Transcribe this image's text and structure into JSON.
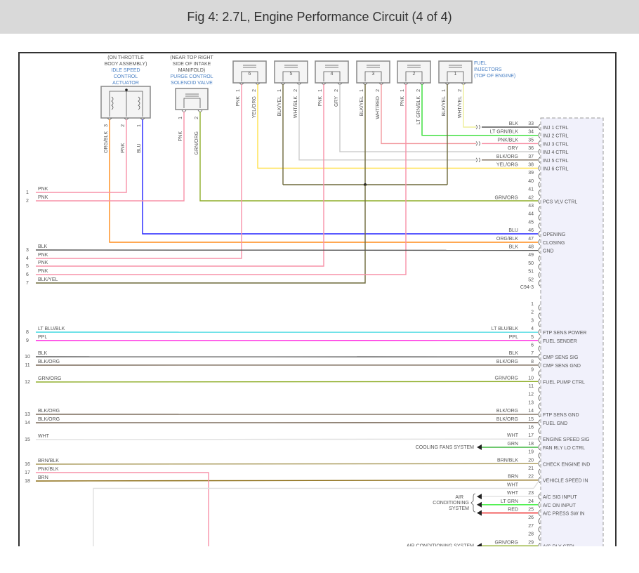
{
  "title": "Fig 4: 2.7L, Engine Performance Circuit (4 of 4)",
  "components": {
    "iac": {
      "location": [
        "(ON THROTTLE",
        "BODY ASSEMBLY)"
      ],
      "name": [
        "IDLE SPEED",
        "CONTROL",
        "ACTUATOR"
      ],
      "pins": [
        {
          "pin": "3",
          "wire": "ORG/BLK"
        },
        {
          "pin": "2",
          "wire": "PNK"
        },
        {
          "pin": "1",
          "wire": "BLU"
        }
      ]
    },
    "purge": {
      "location": [
        "(NEAR TOP RIGHT",
        "SIDE OF INTAKE",
        "MANIFOLD)"
      ],
      "name": [
        "PURGE CONTROL",
        "SOLENOID VALVE"
      ],
      "pins": [
        {
          "pin": "1",
          "wire": "PNK"
        },
        {
          "pin": "2",
          "wire": "GRN/ORG"
        }
      ]
    },
    "injectors": {
      "name": [
        "FUEL",
        "INJECTORS",
        "(TOP OF ENGINE)"
      ],
      "items": [
        {
          "num": "1",
          "pin1": "BLK/YEL",
          "pin2": "WHT/YEL"
        },
        {
          "num": "2",
          "pin1": "PNK",
          "pin2": "LT GRN/BLK"
        },
        {
          "num": "3",
          "pin1": "BLK/YEL",
          "pin2": "WHT/RED"
        },
        {
          "num": "4",
          "pin1": "PNK",
          "pin2": "GRY"
        },
        {
          "num": "5",
          "pin1": "BLK/YEL",
          "pin2": "WHT/BLK"
        },
        {
          "num": "6",
          "pin1": "PNK",
          "pin2": "YEL/ORG"
        }
      ]
    }
  },
  "pcm_connector_a": {
    "name": "C94-3",
    "pins": [
      {
        "pin": "33",
        "wire": "BLK",
        "func": "INJ 1 CTRL"
      },
      {
        "pin": "34",
        "wire": "LT GRN/BLK",
        "func": "INJ 2 CTRL"
      },
      {
        "pin": "35",
        "wire": "PNK/BLK",
        "func": "INJ 3 CTRL"
      },
      {
        "pin": "36",
        "wire": "GRY",
        "func": "INJ 4 CTRL"
      },
      {
        "pin": "37",
        "wire": "BLK/ORG",
        "func": "INJ 5 CTRL"
      },
      {
        "pin": "38",
        "wire": "YEL/ORG",
        "func": "INJ 6 CTRL"
      },
      {
        "pin": "39"
      },
      {
        "pin": "40"
      },
      {
        "pin": "41"
      },
      {
        "pin": "42",
        "wire": "GRN/ORG",
        "func": "PCS VLV CTRL"
      },
      {
        "pin": "43"
      },
      {
        "pin": "44"
      },
      {
        "pin": "45"
      },
      {
        "pin": "46",
        "wire": "BLU",
        "func": "OPENING"
      },
      {
        "pin": "47",
        "wire": "ORG/BLK",
        "func": "CLOSING"
      },
      {
        "pin": "48",
        "wire": "BLK",
        "func": "GND"
      },
      {
        "pin": "49"
      },
      {
        "pin": "50"
      },
      {
        "pin": "51"
      },
      {
        "pin": "52"
      }
    ]
  },
  "pcm_connector_b": {
    "pins": [
      {
        "pin": "1"
      },
      {
        "pin": "2"
      },
      {
        "pin": "3"
      },
      {
        "pin": "4",
        "wire": "LT BLU/BLK",
        "func": "FTP SENS POWER"
      },
      {
        "pin": "5",
        "wire": "PPL",
        "func": "FUEL SENDER"
      },
      {
        "pin": "6"
      },
      {
        "pin": "7",
        "wire": "BLK",
        "func": "CMP SENS SIG"
      },
      {
        "pin": "8",
        "wire": "BLK/ORG",
        "func": "CMP SENS GND"
      },
      {
        "pin": "9"
      },
      {
        "pin": "10",
        "wire": "GRN/ORG",
        "func": "FUEL PUMP CTRL"
      },
      {
        "pin": "11"
      },
      {
        "pin": "12"
      },
      {
        "pin": "13"
      },
      {
        "pin": "14",
        "wire": "BLK/ORG",
        "func": "FTP SENS GND"
      },
      {
        "pin": "15",
        "wire": "BLK/ORG",
        "func": "FUEL GND"
      },
      {
        "pin": "16"
      },
      {
        "pin": "17",
        "wire": "WHT",
        "func": "ENGINE SPEED SIG"
      },
      {
        "pin": "18",
        "wire": "GRN",
        "func": "FAN RLY LO CTRL"
      },
      {
        "pin": "19"
      },
      {
        "pin": "20",
        "wire": "BRN/BLK",
        "func": "CHECK ENGINE IND"
      },
      {
        "pin": "21"
      },
      {
        "pin": "22",
        "wire": "BRN",
        "func": "VEHICLE SPEED IN"
      },
      {
        "pin": "23",
        "wire": "WHT",
        "func": "A/C SIG INPUT"
      },
      {
        "pin": "24",
        "wire": "LT GRN",
        "func": "A/C ON INPUT"
      },
      {
        "pin": "25",
        "wire": "RED",
        "func": "A/C PRESS SW IN"
      },
      {
        "pin": "26"
      },
      {
        "pin": "27"
      },
      {
        "pin": "28"
      },
      {
        "pin": "29",
        "wire": "GRN/ORG",
        "func": "A/C RLY CTRL"
      }
    ],
    "extra_wire": "WHT"
  },
  "left_pins": [
    {
      "num": "1",
      "wire": "PNK"
    },
    {
      "num": "2",
      "wire": "PNK"
    },
    {
      "num": "3",
      "wire": "BLK",
      "to": "48"
    },
    {
      "num": "4",
      "wire": "PNK"
    },
    {
      "num": "5",
      "wire": "PNK"
    },
    {
      "num": "6",
      "wire": "PNK"
    },
    {
      "num": "7",
      "wire": "BLK/YEL"
    },
    {
      "num": "8",
      "wire": "LT BLU/BLK",
      "to": "4"
    },
    {
      "num": "9",
      "wire": "PPL",
      "to": "5"
    },
    {
      "num": "10",
      "wire": "BLK",
      "to": "7"
    },
    {
      "num": "11",
      "wire": "BLK/ORG",
      "to": "8"
    },
    {
      "num": "12",
      "wire": "GRN/ORG",
      "to": "10"
    },
    {
      "num": "13",
      "wire": "BLK/ORG",
      "to": "14"
    },
    {
      "num": "14",
      "wire": "BLK/ORG",
      "to": "15"
    },
    {
      "num": "15",
      "wire": "WHT",
      "to": "17"
    },
    {
      "num": "16",
      "wire": "BRN/BLK",
      "to": "20"
    },
    {
      "num": "17",
      "wire": "PNK/BLK"
    },
    {
      "num": "18",
      "wire": "BRN",
      "to": "22"
    }
  ],
  "external": {
    "cooling_fans": "COOLING FANS SYSTEM",
    "air_conditioning": [
      "AIR",
      "CONDITIONING",
      "SYSTEM"
    ],
    "air_conditioning_relay": "AIR CONDITIONING SYSTEM"
  },
  "wire_colors": {
    "BLK": "#555555",
    "PNK": "#f792a8",
    "BLU": "#2222ff",
    "ORG/BLK": "#ff8c1a",
    "GRN/ORG": "#8fae2a",
    "YEL/ORG": "#ffe04a",
    "GRY": "#c8c8c8",
    "WHT/RED": "#f29aa0",
    "LT GRN/BLK": "#33dd33",
    "BLK/YEL": "#6e6a3c",
    "WHT/BLK": "#cccccc",
    "WHT/YEL": "#eeee9a",
    "PNK/BLK": "#f792a8",
    "BLK/ORG": "#7a6a5a",
    "LT BLU/BLK": "#40d8e0",
    "PPL": "#ff20e0",
    "WHT": "#e0e0e0",
    "GRN": "#22aa22",
    "BRN/BLK": "#a89858",
    "BRN": "#8a6a10",
    "LT GRN": "#33ee33",
    "RED": "#ee2222"
  }
}
